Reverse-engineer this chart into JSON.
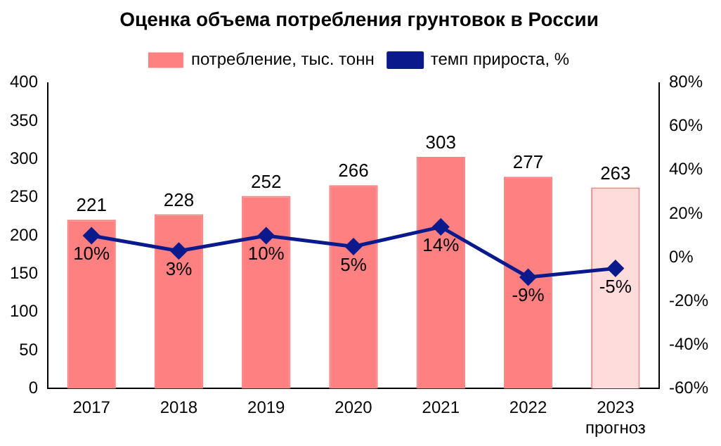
{
  "chart_data": {
    "type": "bar",
    "title": "Оценка объема потребления грунтовок в России",
    "categories": [
      "2017",
      "2018",
      "2019",
      "2020",
      "2021",
      "2022",
      "2023\nпрогноз"
    ],
    "series": [
      {
        "name": "потребление, тыс. тонн",
        "color": "#ff8080",
        "colors": [
          "#ff8080",
          "#ff8080",
          "#ff8080",
          "#ff8080",
          "#ff8080",
          "#ff8080",
          "#ffdcdc"
        ],
        "values": [
          221,
          228,
          252,
          266,
          303,
          277,
          263
        ],
        "value_labels": [
          "221",
          "228",
          "252",
          "266",
          "303",
          "277",
          "263"
        ]
      },
      {
        "name": "темп прироста, %",
        "type": "line",
        "axis": "y2",
        "color": "#0a1a8c",
        "marker": "diamond",
        "values": [
          10,
          3,
          10,
          5,
          14,
          -9,
          -5
        ],
        "value_labels": [
          "10%",
          "3%",
          "10%",
          "5%",
          "14%",
          "-9%",
          "-5%"
        ]
      }
    ],
    "ylim": [
      0,
      400
    ],
    "yticks": [
      0,
      50,
      100,
      150,
      200,
      250,
      300,
      350,
      400
    ],
    "y2lim": [
      -60,
      80
    ],
    "y2ticks": [
      {
        "value": -60,
        "label": "-60%"
      },
      {
        "value": -40,
        "label": "-40%"
      },
      {
        "value": -20,
        "label": "-20%"
      },
      {
        "value": 0,
        "label": "0%"
      },
      {
        "value": 20,
        "label": "20%"
      },
      {
        "value": 40,
        "label": "40%"
      },
      {
        "value": 60,
        "label": "60%"
      },
      {
        "value": 80,
        "label": "80%"
      }
    ],
    "legend": "top",
    "grid": false
  }
}
